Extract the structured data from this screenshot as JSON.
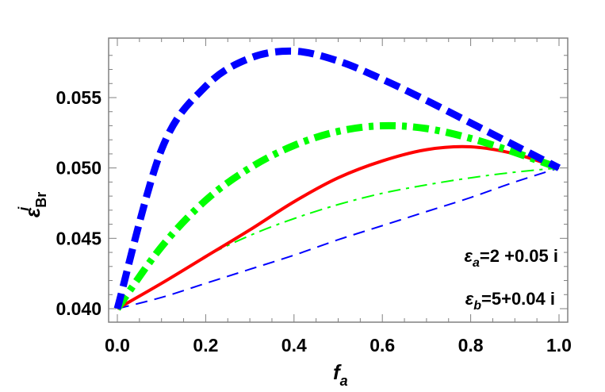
{
  "chart_data": {
    "type": "line",
    "title": "",
    "xlabel": "f_a",
    "ylabel": "ε^i_Br",
    "xlim": [
      0.0,
      1.0
    ],
    "ylim": [
      0.039,
      0.0592
    ],
    "x_ticks": [
      "0.0",
      "0.2",
      "0.4",
      "0.6",
      "0.8",
      "1.0"
    ],
    "y_ticks": [
      "0.040",
      "0.045",
      "0.050",
      "0.055"
    ],
    "grid": false,
    "legend": null,
    "annotations": [
      "ε_a=2 +0.05 i",
      "ε_b=5+0.04 i"
    ],
    "x": [
      0.0,
      0.1,
      0.2,
      0.3,
      0.4,
      0.5,
      0.6,
      0.7,
      0.8,
      0.9,
      1.0
    ],
    "series": [
      {
        "name": "thick-blue-dashed",
        "color": "#0000ff",
        "style": "dashed",
        "width": 9,
        "values": [
          0.04,
          0.0513,
          0.0558,
          0.0578,
          0.0583,
          0.0576,
          0.0563,
          0.0548,
          0.0532,
          0.0516,
          0.05
        ]
      },
      {
        "name": "thick-green-dashdot",
        "color": "#00ff00",
        "style": "dashdot",
        "width": 9,
        "values": [
          0.04,
          0.0444,
          0.0477,
          0.05,
          0.0516,
          0.0526,
          0.053,
          0.0528,
          0.0521,
          0.0511,
          0.05
        ]
      },
      {
        "name": "red-solid",
        "color": "#ff0000",
        "style": "solid",
        "width": 4,
        "values": [
          0.04,
          0.0418,
          0.0437,
          0.0456,
          0.0476,
          0.0493,
          0.0505,
          0.0513,
          0.0515,
          0.051,
          0.05
        ]
      },
      {
        "name": "thin-green-dashdot",
        "color": "#00ff00",
        "style": "dashdot",
        "width": 2,
        "values": [
          0.04,
          0.0418,
          0.0437,
          0.0452,
          0.0464,
          0.0474,
          0.0482,
          0.0488,
          0.0493,
          0.0497,
          0.05
        ]
      },
      {
        "name": "thin-blue-dashed",
        "color": "#0000ff",
        "style": "dashed",
        "width": 2,
        "values": [
          0.04,
          0.0408,
          0.0418,
          0.0428,
          0.0438,
          0.0449,
          0.0459,
          0.0469,
          0.0479,
          0.049,
          0.05
        ]
      }
    ]
  },
  "labels": {
    "x_axis_main": "f",
    "x_axis_sub": "a",
    "y_axis_main": "ε",
    "y_axis_sup": "i",
    "y_axis_sub": "Br",
    "annot1_eps": "ε",
    "annot1_sub": "a",
    "annot1_rest": "=2 +0.05 i",
    "annot2_eps": "ε",
    "annot2_sub": "b",
    "annot2_rest": "=5+0.04 i"
  }
}
